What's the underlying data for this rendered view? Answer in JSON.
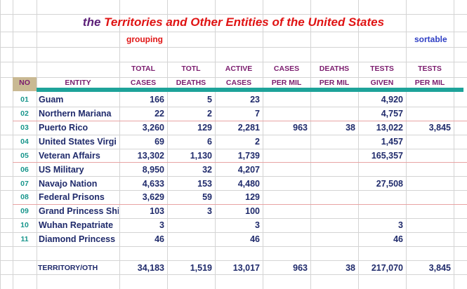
{
  "title": {
    "prefix": "the ",
    "main": "Territories and Other Entities of the United States"
  },
  "links": {
    "grouping": "grouping",
    "sortable": "sortable"
  },
  "header_no": "NO",
  "header_entity": "ENTITY",
  "headers": [
    {
      "top": "TOTAL",
      "bottom": "CASES"
    },
    {
      "top": "TOTL",
      "bottom": "DEATHS"
    },
    {
      "top": "ACTIVE",
      "bottom": "CASES"
    },
    {
      "top": "CASES",
      "bottom": "PER MIL"
    },
    {
      "top": "DEATHS",
      "bottom": "PER MIL"
    },
    {
      "top": "TESTS",
      "bottom": "GIVEN"
    },
    {
      "top": "TESTS",
      "bottom": "PER MIL"
    }
  ],
  "rows": [
    {
      "no": "01",
      "entity": "Guam",
      "cases": "166",
      "deaths": "5",
      "active": "23",
      "cases_pm": "",
      "deaths_pm": "",
      "tests": "4,920",
      "tests_pm": ""
    },
    {
      "no": "02",
      "entity": "Northern Mariana",
      "cases": "22",
      "deaths": "2",
      "active": "7",
      "cases_pm": "",
      "deaths_pm": "",
      "tests": "4,757",
      "tests_pm": ""
    },
    {
      "no": "03",
      "entity": "Puerto Rico",
      "cases": "3,260",
      "deaths": "129",
      "active": "2,281",
      "cases_pm": "963",
      "deaths_pm": "38",
      "tests": "13,022",
      "tests_pm": "3,845"
    },
    {
      "no": "04",
      "entity": "United States Virgi",
      "cases": "69",
      "deaths": "6",
      "active": "2",
      "cases_pm": "",
      "deaths_pm": "",
      "tests": "1,457",
      "tests_pm": ""
    },
    {
      "no": "05",
      "entity": "Veteran Affairs",
      "cases": "13,302",
      "deaths": "1,130",
      "active": "1,739",
      "cases_pm": "",
      "deaths_pm": "",
      "tests": "165,357",
      "tests_pm": ""
    },
    {
      "no": "06",
      "entity": "US Military",
      "cases": "8,950",
      "deaths": "32",
      "active": "4,207",
      "cases_pm": "",
      "deaths_pm": "",
      "tests": "",
      "tests_pm": ""
    },
    {
      "no": "07",
      "entity": "Navajo Nation",
      "cases": "4,633",
      "deaths": "153",
      "active": "4,480",
      "cases_pm": "",
      "deaths_pm": "",
      "tests": "27,508",
      "tests_pm": ""
    },
    {
      "no": "08",
      "entity": "Federal Prisons",
      "cases": "3,629",
      "deaths": "59",
      "active": "129",
      "cases_pm": "",
      "deaths_pm": "",
      "tests": "",
      "tests_pm": ""
    },
    {
      "no": "09",
      "entity": "Grand Princess Shi",
      "cases": "103",
      "deaths": "3",
      "active": "100",
      "cases_pm": "",
      "deaths_pm": "",
      "tests": "",
      "tests_pm": ""
    },
    {
      "no": "10",
      "entity": "Wuhan Repatriate",
      "cases": "3",
      "deaths": "",
      "active": "3",
      "cases_pm": "",
      "deaths_pm": "",
      "tests": "3",
      "tests_pm": ""
    },
    {
      "no": "11",
      "entity": "Diamond Princess",
      "cases": "46",
      "deaths": "",
      "active": "46",
      "cases_pm": "",
      "deaths_pm": "",
      "tests": "46",
      "tests_pm": ""
    }
  ],
  "total": {
    "label": "TERRITORY/OTH",
    "cases": "34,183",
    "deaths": "1,519",
    "active": "13,017",
    "cases_pm": "963",
    "deaths_pm": "38",
    "tests": "217,070",
    "tests_pm": "3,845"
  }
}
